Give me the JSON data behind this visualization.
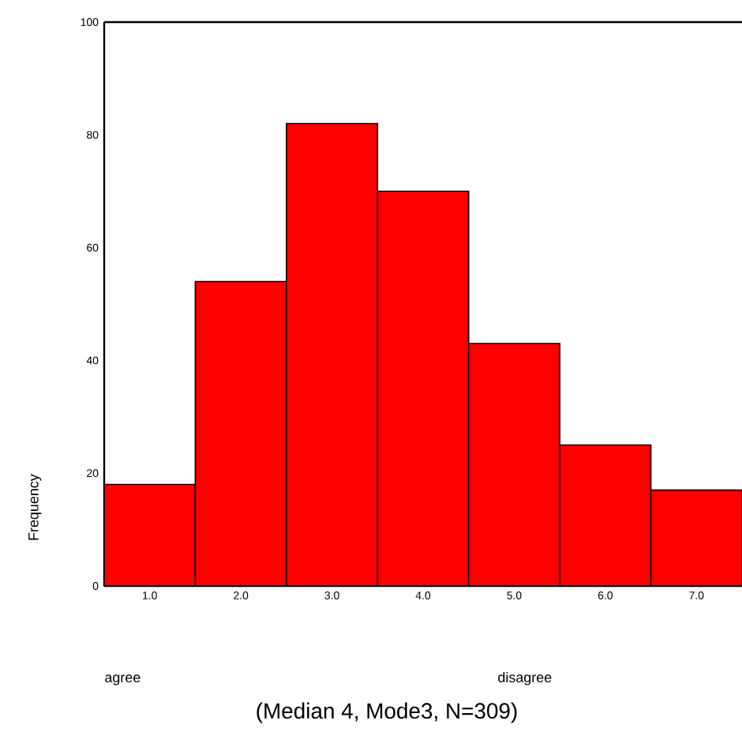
{
  "chart_data": {
    "type": "histogram",
    "bins": [
      0.5,
      1.5,
      2.5,
      3.5,
      4.5,
      5.5,
      6.5,
      7.5
    ],
    "values": [
      18,
      54,
      82,
      70,
      43,
      25,
      17
    ],
    "color": "#ff0000",
    "ylabel": "Frequency",
    "xlim": [
      0.5,
      7.5
    ],
    "ylim": [
      0,
      100
    ],
    "xticks": [
      {
        "value": 1,
        "label": "1.0"
      },
      {
        "value": 2,
        "label": "2.0"
      },
      {
        "value": 3,
        "label": "3.0"
      },
      {
        "value": 4,
        "label": "4.0"
      },
      {
        "value": 5,
        "label": "5.0"
      },
      {
        "value": 6,
        "label": "6.0"
      },
      {
        "value": 7,
        "label": "7.0"
      }
    ],
    "yticks": [
      0,
      20,
      40,
      60,
      80,
      100
    ],
    "annotations": [
      "agree",
      "disagree",
      "(Median 4, Mode3, N=309)"
    ],
    "grid": false
  }
}
